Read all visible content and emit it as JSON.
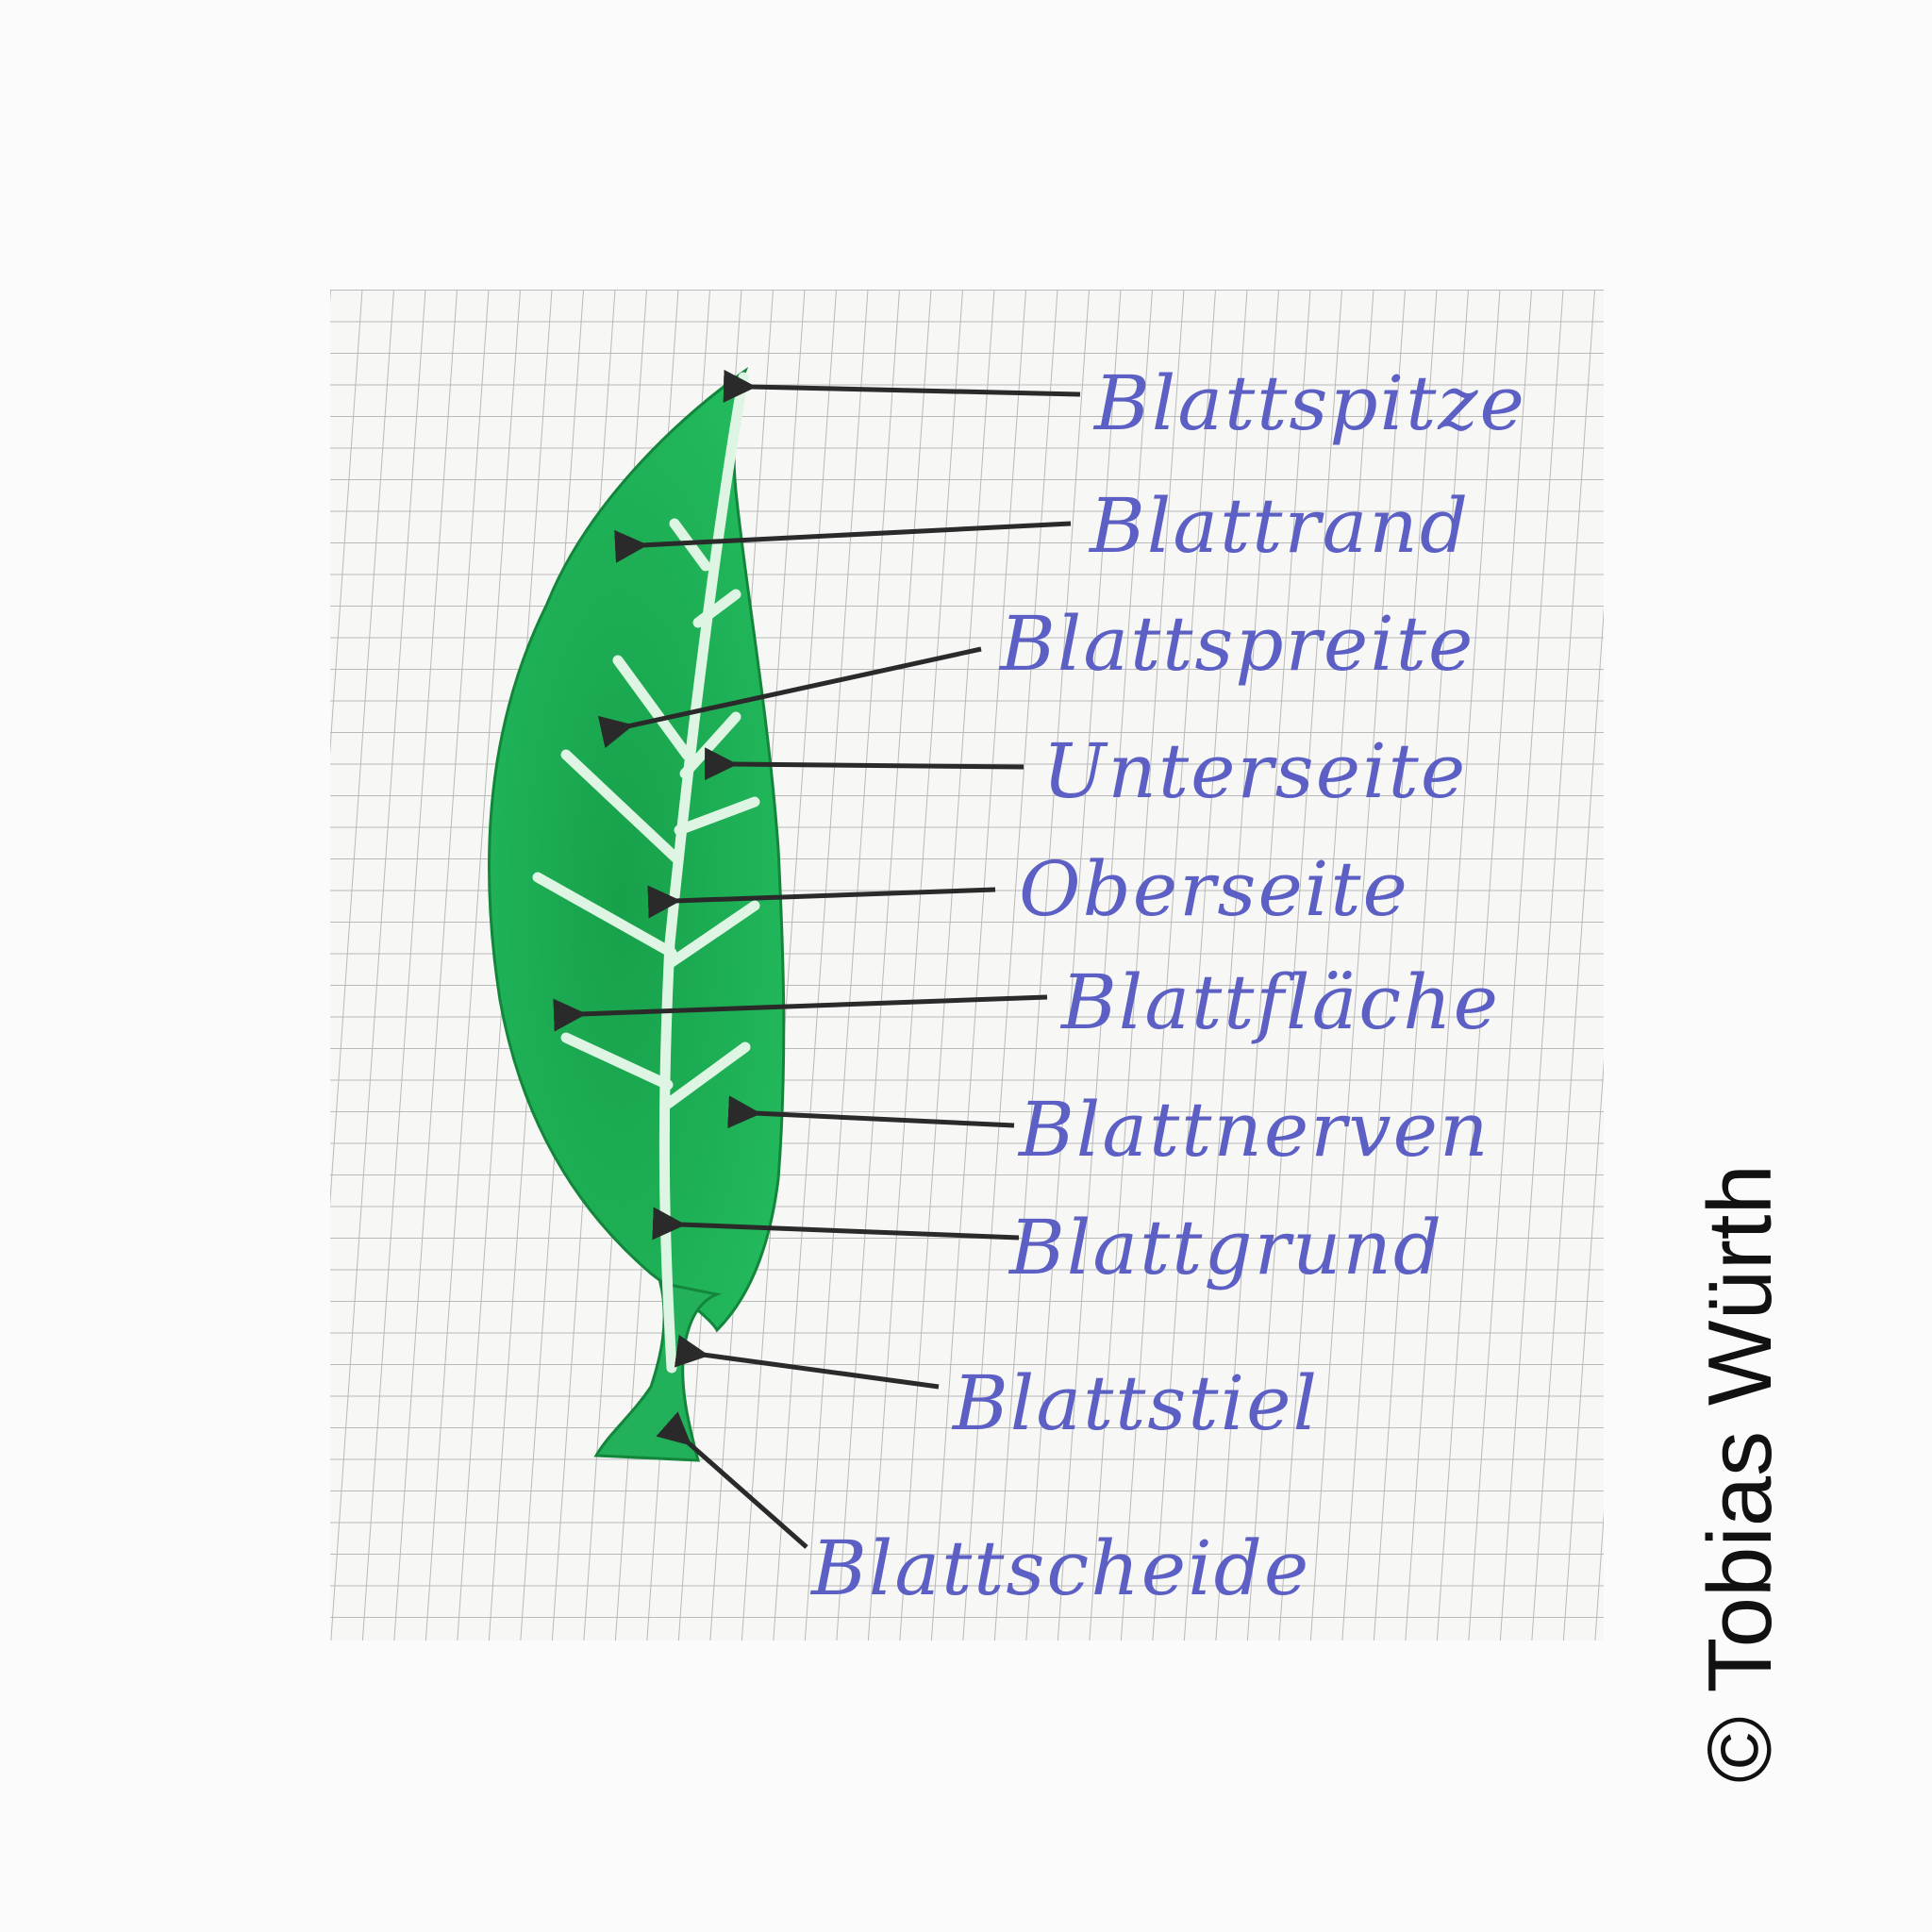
{
  "diagram": {
    "labels": [
      {
        "id": "blattspitze",
        "text": "Blattspitze"
      },
      {
        "id": "blattrand",
        "text": "Blattrand"
      },
      {
        "id": "blattspreite",
        "text": "Blattspreite"
      },
      {
        "id": "unterseite",
        "text": "Unterseite"
      },
      {
        "id": "oberseite",
        "text": "Oberseite"
      },
      {
        "id": "blattflaeche",
        "text": "Blattfläche"
      },
      {
        "id": "blattnerven",
        "text": "Blattnerven"
      },
      {
        "id": "blattgrund",
        "text": "Blattgrund"
      },
      {
        "id": "blattstiel",
        "text": "Blattstiel"
      },
      {
        "id": "blattscheide",
        "text": "Blattscheide"
      }
    ]
  },
  "credit": "© Tobias Würth",
  "colors": {
    "leaf": "#1fae55",
    "leaf_dark": "#138a3e",
    "vein": "#dff5e4",
    "ink": "#5c5fc4",
    "arrow": "#2a2a2a",
    "grid": "#b9b9b9",
    "paper": "#f7f7f5"
  }
}
